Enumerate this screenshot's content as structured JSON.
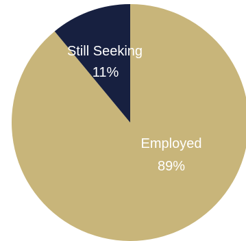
{
  "chart_data": {
    "type": "pie",
    "title": "",
    "start_angle_deg": 0,
    "direction": "clockwise",
    "slices": [
      {
        "label": "Employed",
        "value": 89,
        "percent_label": "89%",
        "color": "#c8b57a"
      },
      {
        "label": "Still Seeking",
        "value": 11,
        "percent_label": "11%",
        "color": "#172040"
      }
    ],
    "legend": "none"
  }
}
